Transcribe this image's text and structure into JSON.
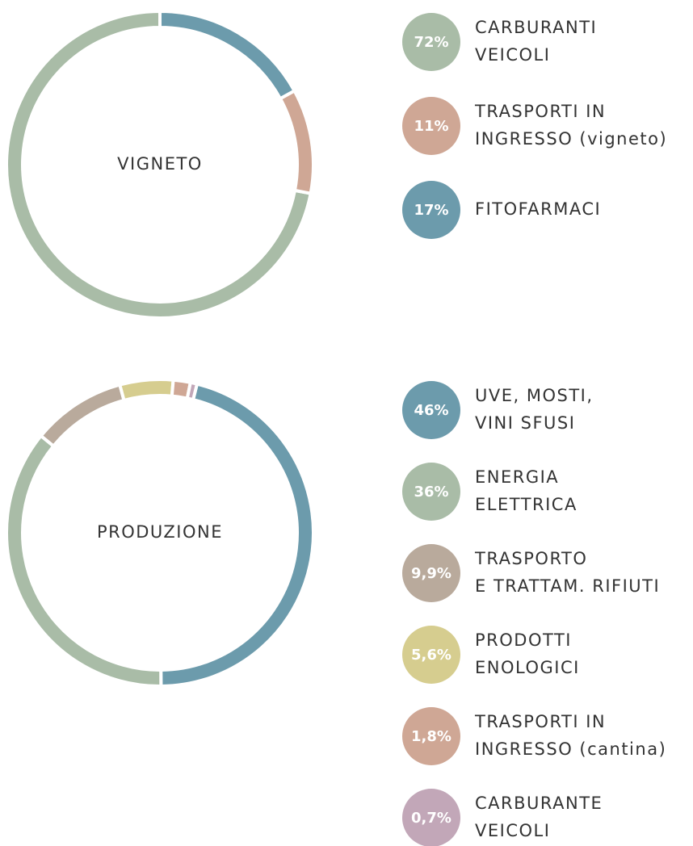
{
  "chart_data": [
    {
      "type": "donut",
      "title": "VIGNETO",
      "start_angle": 0,
      "clockwise": false,
      "categories": [
        [
          "CARBURANTI",
          "VEICOLI"
        ],
        [
          "TRASPORTI IN",
          "INGRESSO (vigneto)"
        ],
        [
          "FITOFARMACI"
        ]
      ],
      "values": [
        72,
        11,
        17
      ],
      "value_labels": [
        "72%",
        "11%",
        "17%"
      ],
      "colors": [
        "#a9bca7",
        "#cfa795",
        "#6c9bac"
      ]
    },
    {
      "type": "donut",
      "title": "PRODUZIONE",
      "start_angle": 14,
      "clockwise": true,
      "categories": [
        [
          "UVE, MOSTI,",
          "VINI SFUSI"
        ],
        [
          "ENERGIA",
          "ELETTRICA"
        ],
        [
          "TRASPORTO",
          "E TRATTAM. RIFIUTI"
        ],
        [
          "PRODOTTI",
          "ENOLOGICI"
        ],
        [
          "TRASPORTI IN",
          "INGRESSO (cantina)"
        ],
        [
          "CARBURANTE",
          "VEICOLI"
        ]
      ],
      "values": [
        46,
        36,
        9.9,
        5.6,
        1.8,
        0.7
      ],
      "value_labels": [
        "46%",
        "36%",
        "9,9%",
        "5,6%",
        "1,8%",
        "0,7%"
      ],
      "colors": [
        "#6c9bac",
        "#a9bca7",
        "#b9aa9c",
        "#d6cd8f",
        "#cfa795",
        "#c2a7b8"
      ]
    }
  ]
}
